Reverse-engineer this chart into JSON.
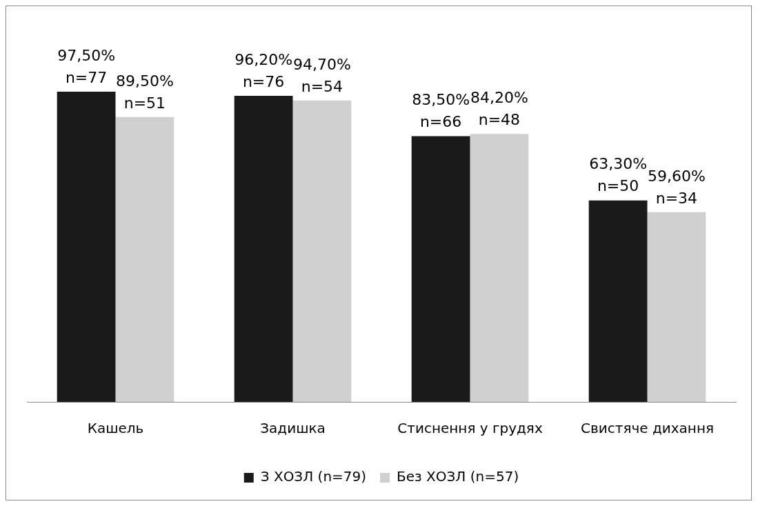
{
  "chart_data": {
    "type": "bar",
    "categories": [
      "Кашель",
      "Задишка",
      "Стиснення у грудях",
      "Свистяче дихання"
    ],
    "series": [
      {
        "name": "З ХОЗЛ (n=79)",
        "color": "#1a1a1a",
        "values": [
          97.5,
          96.2,
          83.5,
          63.3
        ],
        "value_labels": [
          "97,50%\nn=77",
          "96,20%\nn=76",
          "83,50%\nn=66",
          "63,30%\nn=50"
        ]
      },
      {
        "name": "Без ХОЗЛ (n=57)",
        "color": "#d0d0d0",
        "values": [
          89.5,
          94.7,
          84.2,
          59.6
        ],
        "value_labels": [
          "89,50%\nn=51",
          "94,70%\nn=54",
          "84,20%\nn=48",
          "59,60%\nn=34"
        ]
      }
    ],
    "legend": "bottom",
    "grid": false
  }
}
